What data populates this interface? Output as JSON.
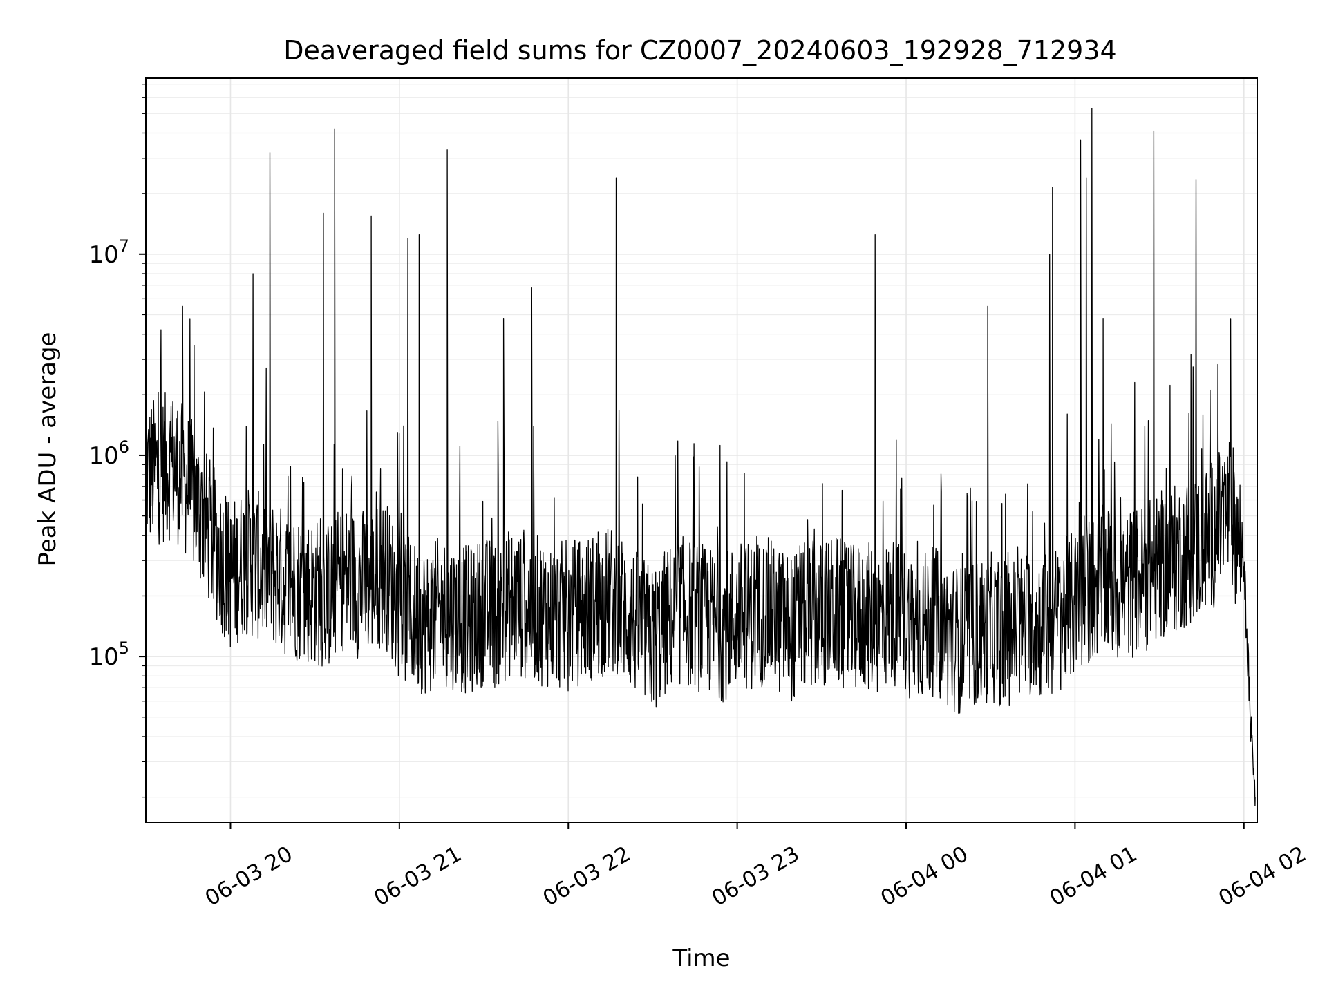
{
  "chart_data": {
    "type": "line",
    "title": "Deaveraged field sums for CZ0007_20240603_192928_712934",
    "xlabel": "Time",
    "ylabel": "Peak ADU - average",
    "y_scale": "log",
    "ylim": [
      15000,
      75000000
    ],
    "xlim": [
      "2024-06-03 19:29:56",
      "2024-06-04 02:04:43"
    ],
    "x_tick_labels": [
      "06-03 20",
      "06-03 21",
      "06-03 22",
      "06-03 23",
      "06-04 00",
      "06-04 01",
      "06-04 02"
    ],
    "x_ticks": [
      "2024-06-03 20:00",
      "2024-06-03 21:00",
      "2024-06-03 22:00",
      "2024-06-03 23:00",
      "2024-06-04 00:00",
      "2024-06-04 01:00",
      "2024-06-04 02:00"
    ],
    "y_tick_labels": [
      {
        "base": "10",
        "exp": "5",
        "value": 100000
      },
      {
        "base": "10",
        "exp": "6",
        "value": 1000000
      },
      {
        "base": "10",
        "exp": "7",
        "value": 10000000
      }
    ],
    "grid": true,
    "series": [
      {
        "color": "#000000",
        "x": [
          "2024-06-03 19:30",
          "2024-06-03 19:35",
          "2024-06-03 19:40",
          "2024-06-03 19:45",
          "2024-06-03 19:50",
          "2024-06-03 19:55",
          "2024-06-03 20:00",
          "2024-06-03 20:05",
          "2024-06-03 20:10",
          "2024-06-03 20:15",
          "2024-06-03 20:20",
          "2024-06-03 20:25",
          "2024-06-03 20:30",
          "2024-06-03 20:35",
          "2024-06-03 20:40",
          "2024-06-03 20:45",
          "2024-06-03 20:50",
          "2024-06-03 20:55",
          "2024-06-03 21:00",
          "2024-06-03 21:05",
          "2024-06-03 21:10",
          "2024-06-03 21:15",
          "2024-06-03 21:20",
          "2024-06-03 21:25",
          "2024-06-03 21:30",
          "2024-06-03 21:35",
          "2024-06-03 21:40",
          "2024-06-03 21:45",
          "2024-06-03 21:50",
          "2024-06-03 21:55",
          "2024-06-03 22:00",
          "2024-06-03 22:05",
          "2024-06-03 22:10",
          "2024-06-03 22:15",
          "2024-06-03 22:20",
          "2024-06-03 22:25",
          "2024-06-03 22:30",
          "2024-06-03 22:35",
          "2024-06-03 22:40",
          "2024-06-03 22:45",
          "2024-06-03 22:50",
          "2024-06-03 22:55",
          "2024-06-03 23:00",
          "2024-06-03 23:05",
          "2024-06-03 23:10",
          "2024-06-03 23:15",
          "2024-06-03 23:20",
          "2024-06-03 23:25",
          "2024-06-03 23:30",
          "2024-06-03 23:35",
          "2024-06-03 23:40",
          "2024-06-03 23:45",
          "2024-06-03 23:50",
          "2024-06-03 23:55",
          "2024-06-04 00:00",
          "2024-06-04 00:05",
          "2024-06-04 00:10",
          "2024-06-04 00:15",
          "2024-06-04 00:20",
          "2024-06-04 00:25",
          "2024-06-04 00:30",
          "2024-06-04 00:35",
          "2024-06-04 00:40",
          "2024-06-04 00:45",
          "2024-06-04 00:50",
          "2024-06-04 00:55",
          "2024-06-04 01:00",
          "2024-06-04 01:05",
          "2024-06-04 01:10",
          "2024-06-04 01:15",
          "2024-06-04 01:20",
          "2024-06-04 01:25",
          "2024-06-04 01:30",
          "2024-06-04 01:35",
          "2024-06-04 01:40",
          "2024-06-04 01:45",
          "2024-06-04 01:50",
          "2024-06-04 01:55",
          "2024-06-04 02:00",
          "2024-06-04 02:02",
          "2024-06-04 02:04"
        ],
        "values": [
          800000,
          850000,
          900000,
          700000,
          500000,
          350000,
          250000,
          300000,
          280000,
          260000,
          230000,
          220000,
          210000,
          200000,
          250000,
          230000,
          240000,
          260000,
          180000,
          160000,
          150000,
          170000,
          160000,
          150000,
          170000,
          160000,
          190000,
          180000,
          170000,
          160000,
          160000,
          170000,
          180000,
          190000,
          170000,
          140000,
          120000,
          150000,
          170000,
          160000,
          150000,
          140000,
          160000,
          160000,
          170000,
          150000,
          140000,
          160000,
          160000,
          170000,
          150000,
          160000,
          150000,
          170000,
          150000,
          140000,
          150000,
          130000,
          120000,
          130000,
          140000,
          130000,
          140000,
          150000,
          140000,
          160000,
          180000,
          210000,
          240000,
          220000,
          230000,
          250000,
          280000,
          300000,
          330000,
          360000,
          420000,
          550000,
          300000,
          60000,
          20000
        ]
      }
    ],
    "spikes": [
      {
        "x": "2024-06-03 19:43",
        "value": 5500000
      },
      {
        "x": "2024-06-03 20:08",
        "value": 8000000
      },
      {
        "x": "2024-06-03 20:14",
        "value": 32000000
      },
      {
        "x": "2024-06-03 20:33",
        "value": 16000000
      },
      {
        "x": "2024-06-03 20:37",
        "value": 42000000
      },
      {
        "x": "2024-06-03 20:50",
        "value": 15500000
      },
      {
        "x": "2024-06-03 21:03",
        "value": 12000000
      },
      {
        "x": "2024-06-03 21:07",
        "value": 12500000
      },
      {
        "x": "2024-06-03 21:17",
        "value": 33000000
      },
      {
        "x": "2024-06-03 21:37",
        "value": 4800000
      },
      {
        "x": "2024-06-03 21:47",
        "value": 6800000
      },
      {
        "x": "2024-06-03 22:17",
        "value": 24000000
      },
      {
        "x": "2024-06-03 23:49",
        "value": 12500000
      },
      {
        "x": "2024-06-04 00:29",
        "value": 5500000
      },
      {
        "x": "2024-06-04 00:51",
        "value": 10000000
      },
      {
        "x": "2024-06-04 00:52",
        "value": 21500000
      },
      {
        "x": "2024-06-04 01:02",
        "value": 37000000
      },
      {
        "x": "2024-06-04 01:04",
        "value": 24000000
      },
      {
        "x": "2024-06-04 01:06",
        "value": 53000000
      },
      {
        "x": "2024-06-04 01:10",
        "value": 4800000
      },
      {
        "x": "2024-06-04 01:28",
        "value": 41000000
      },
      {
        "x": "2024-06-04 01:43",
        "value": 23500000
      }
    ]
  }
}
